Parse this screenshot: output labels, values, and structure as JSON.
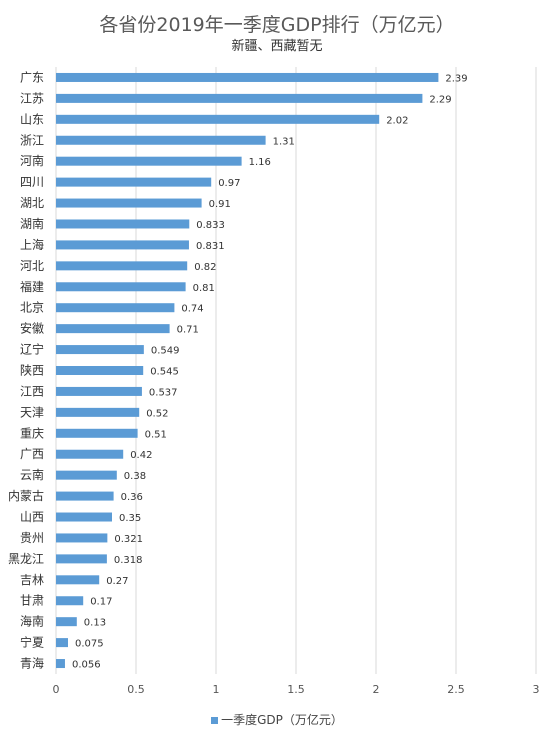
{
  "chart_data": {
    "type": "bar",
    "orientation": "horizontal",
    "title": "各省份2019年一季度GDP排行（万亿元）",
    "subtitle": "新疆、西藏暂无",
    "categories": [
      "广东",
      "江苏",
      "山东",
      "浙江",
      "河南",
      "四川",
      "湖北",
      "湖南",
      "上海",
      "河北",
      "福建",
      "北京",
      "安徽",
      "辽宁",
      "陕西",
      "江西",
      "天津",
      "重庆",
      "广西",
      "云南",
      "内蒙古",
      "山西",
      "贵州",
      "黑龙江",
      "吉林",
      "甘肃",
      "海南",
      "宁夏",
      "青海"
    ],
    "values": [
      2.39,
      2.29,
      2.02,
      1.31,
      1.16,
      0.97,
      0.91,
      0.833,
      0.831,
      0.82,
      0.81,
      0.74,
      0.71,
      0.549,
      0.545,
      0.537,
      0.52,
      0.51,
      0.42,
      0.38,
      0.36,
      0.35,
      0.321,
      0.318,
      0.27,
      0.17,
      0.13,
      0.075,
      0.056
    ],
    "value_labels": [
      "2.39",
      "2.29",
      "2.02",
      "1.31",
      "1.16",
      "0.97",
      "0.91",
      "0.833",
      "0.831",
      "0.82",
      "0.81",
      "0.74",
      "0.71",
      "0.549",
      "0.545",
      "0.537",
      "0.52",
      "0.51",
      "0.42",
      "0.38",
      "0.36",
      "0.35",
      "0.321",
      "0.318",
      "0.27",
      "0.17",
      "0.13",
      "0.075",
      "0.056"
    ],
    "xlim": [
      0,
      3
    ],
    "xticks": [
      "0",
      "0.5",
      "1",
      "1.5",
      "2",
      "2.5",
      "3"
    ],
    "grid": "vertical",
    "legend": "bottom",
    "series": [
      {
        "name": "一季度GDP（万亿元）"
      }
    ],
    "bar_color": "#5b9bd5"
  }
}
